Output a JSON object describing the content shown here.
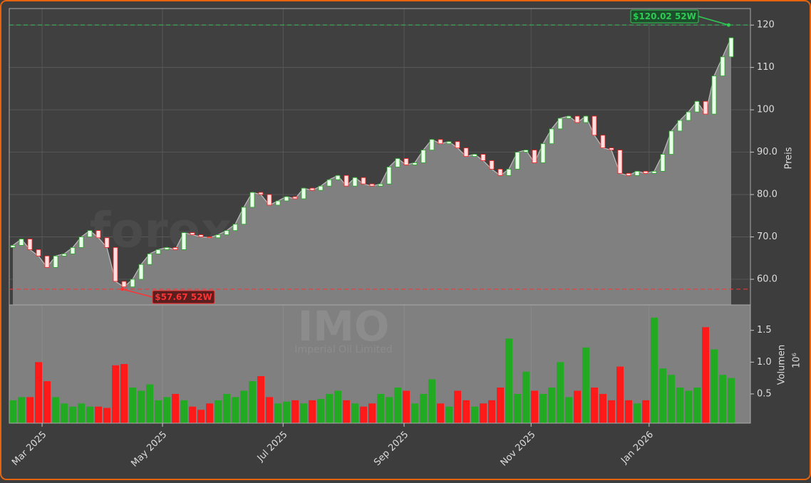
{
  "chart_data": {
    "type": "candlestick",
    "watermark": "forexsignale.trade",
    "ticker": "IMO",
    "company": "Imperial Oil Limited",
    "ylabel": "Preis",
    "volume_label": "Volumen",
    "volume_scale_label": "10⁶",
    "open": [
      67.5,
      68.0,
      69.5,
      67.0,
      65.5,
      62.8,
      65.5,
      66.0,
      67.5,
      70.0,
      71.5,
      69.8,
      67.5,
      59.5,
      58.2,
      60.0,
      63.5,
      66.0,
      67.0,
      67.5,
      67.0,
      71.0,
      70.5,
      70.0,
      69.8,
      70.5,
      71.5,
      73.0,
      77.0,
      80.5,
      80.0,
      77.5,
      78.5,
      79.5,
      79.0,
      81.5,
      81.0,
      82.0,
      83.5,
      84.5,
      82.0,
      84.0,
      82.5,
      82.0,
      82.5,
      86.5,
      88.5,
      87.0,
      87.5,
      90.5,
      93.0,
      92.0,
      92.5,
      91.0,
      89.0,
      89.5,
      88.0,
      86.0,
      84.5,
      86.0,
      90.0,
      90.5,
      87.5,
      92.0,
      95.5,
      98.0,
      98.5,
      97.0,
      98.5,
      94.0,
      91.0,
      90.5,
      85.0,
      84.5,
      85.5,
      85.0,
      85.5,
      89.5,
      95.0,
      97.5,
      99.5,
      102.0,
      99.0,
      108.0,
      112.5
    ],
    "close": [
      68.0,
      69.5,
      67.0,
      65.5,
      62.8,
      65.5,
      66.0,
      67.5,
      70.0,
      71.5,
      69.8,
      67.5,
      59.5,
      58.2,
      60.0,
      63.5,
      66.0,
      67.0,
      67.5,
      67.0,
      71.0,
      70.5,
      70.0,
      69.8,
      70.5,
      71.5,
      73.0,
      77.0,
      80.5,
      80.0,
      77.5,
      78.5,
      79.5,
      79.0,
      81.5,
      81.0,
      82.0,
      83.5,
      84.5,
      82.0,
      84.0,
      82.5,
      82.0,
      82.5,
      86.5,
      88.5,
      87.0,
      87.5,
      90.5,
      93.0,
      92.0,
      92.5,
      91.0,
      89.0,
      89.5,
      88.0,
      86.0,
      84.5,
      86.0,
      90.0,
      90.5,
      87.5,
      92.0,
      95.5,
      98.0,
      98.5,
      97.0,
      98.5,
      94.0,
      91.0,
      90.5,
      85.0,
      84.5,
      85.5,
      85.0,
      85.5,
      89.5,
      95.0,
      97.5,
      99.5,
      102.0,
      99.0,
      108.0,
      112.5,
      117.0
    ],
    "volume": [
      0.4,
      0.45,
      0.45,
      1.0,
      0.7,
      0.45,
      0.35,
      0.3,
      0.35,
      0.3,
      0.3,
      0.28,
      0.95,
      0.97,
      0.6,
      0.55,
      0.65,
      0.4,
      0.45,
      0.5,
      0.4,
      0.3,
      0.25,
      0.35,
      0.4,
      0.5,
      0.45,
      0.55,
      0.7,
      0.78,
      0.45,
      0.35,
      0.38,
      0.4,
      0.35,
      0.4,
      0.42,
      0.5,
      0.55,
      0.4,
      0.35,
      0.3,
      0.35,
      0.5,
      0.45,
      0.6,
      0.55,
      0.35,
      0.5,
      0.73,
      0.35,
      0.3,
      0.55,
      0.4,
      0.3,
      0.35,
      0.4,
      0.6,
      1.37,
      0.5,
      0.85,
      0.55,
      0.5,
      0.6,
      1.0,
      0.45,
      0.55,
      1.23,
      0.6,
      0.5,
      0.4,
      0.93,
      0.4,
      0.35,
      0.4,
      1.7,
      0.9,
      0.8,
      0.6,
      0.55,
      0.6,
      1.55,
      1.2,
      0.8,
      0.75
    ],
    "up_color": "#22aa22",
    "down_color": "#ff1a1a",
    "ylim": [
      53.95,
      123.9
    ],
    "yticks": [
      {
        "value": 60,
        "label": "60.0"
      },
      {
        "value": 70,
        "label": "70.0"
      },
      {
        "value": 80,
        "label": "80.0"
      },
      {
        "value": 90,
        "label": "90.0"
      },
      {
        "value": 100,
        "label": "100"
      },
      {
        "value": 110,
        "label": "110"
      },
      120
    ],
    "volume_ylim": [
      0.04,
      1.9
    ],
    "volume_yticks": [
      0.5,
      {
        "value": 1,
        "label": "1.0"
      },
      1.5
    ],
    "xlim": [
      -0.42,
      86.25
    ],
    "xticks": [
      {
        "value": 3.42,
        "label": "Mar 2025"
      },
      {
        "value": 17.5,
        "label": "May 2025"
      },
      {
        "value": 31.6,
        "label": "Jul 2025"
      },
      {
        "value": 45.75,
        "label": "Sep 2025"
      },
      {
        "value": 60.6,
        "label": "Nov 2025"
      },
      {
        "value": 74.4,
        "label": "Jan 2026"
      }
    ],
    "grid": true,
    "annotations": [
      {
        "text": "$120.02 52W",
        "value": 120.02,
        "index": 83.7,
        "color": "#2ecc55"
      },
      {
        "text": "$57.67 52W",
        "value": 57.67,
        "index": 12.8,
        "color": "#ff3333"
      }
    ]
  }
}
